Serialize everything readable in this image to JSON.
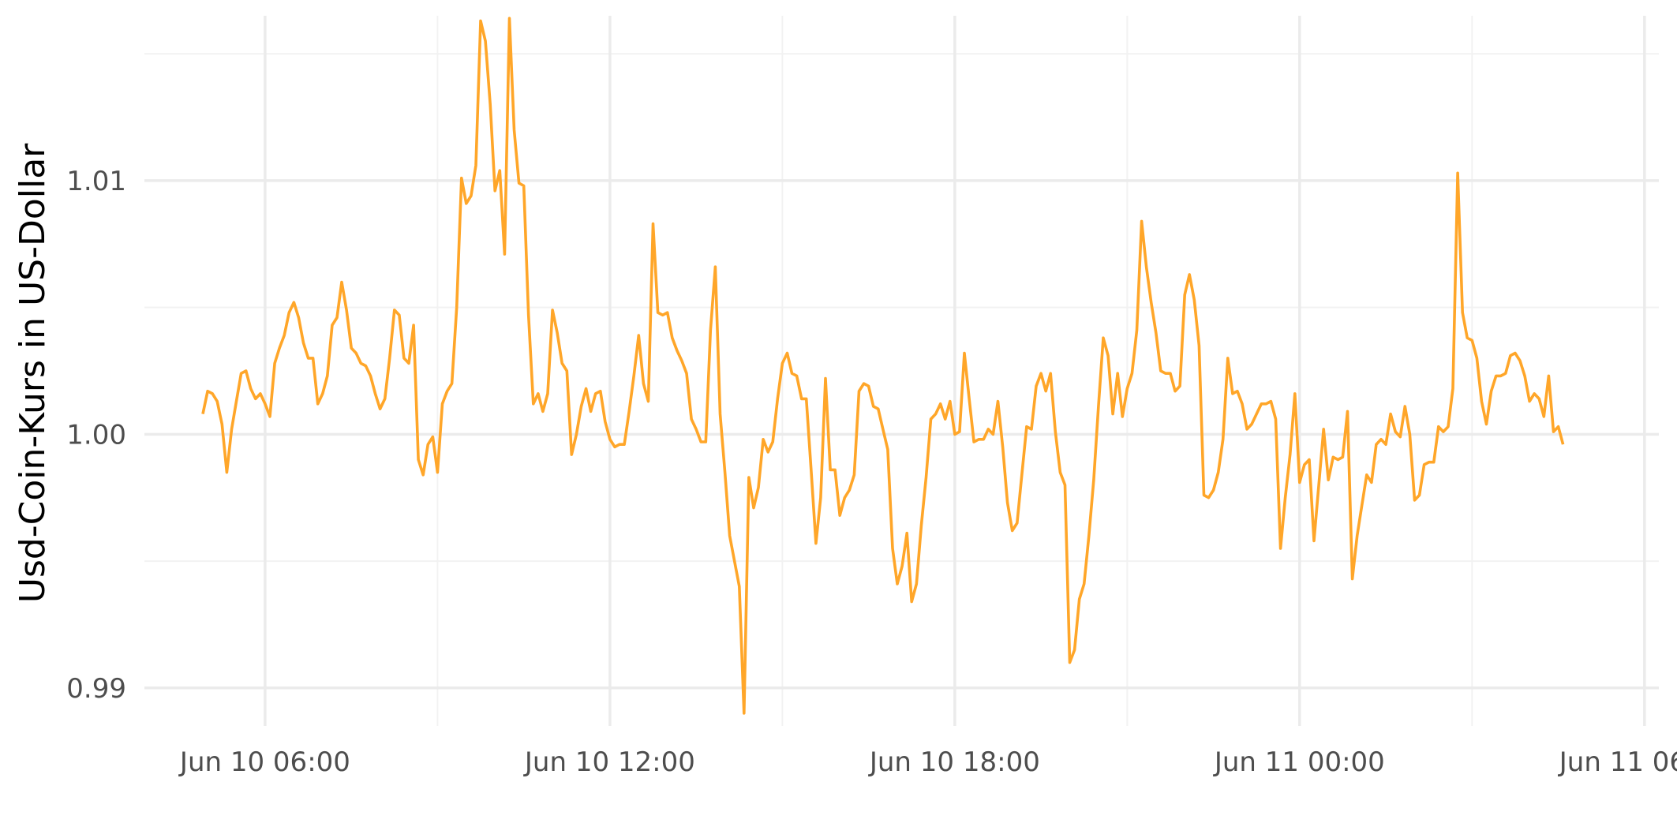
{
  "chart_data": {
    "type": "line",
    "title": "",
    "xlabel": "",
    "ylabel": "Usd-Coin-Kurs in US-Dollar",
    "ylim": [
      0.9885,
      1.0165
    ],
    "xlim": [
      "2021-06-10T03:54",
      "2021-06-11T06:15"
    ],
    "grid": true,
    "legend": "none",
    "line_color": "#FFA629",
    "x_ticks": [
      "2021-06-10T06:00",
      "2021-06-10T12:00",
      "2021-06-10T18:00",
      "2021-06-11T00:00",
      "2021-06-11T06:00"
    ],
    "x_tick_labels": [
      "Jun 10 06:00",
      "Jun 10 12:00",
      "Jun 10 18:00",
      "Jun 11 00:00",
      "Jun 11 06:00"
    ],
    "y_ticks": [
      0.99,
      1.0,
      1.01
    ],
    "y_tick_labels": [
      "0.99",
      "1.00",
      "1.01"
    ],
    "series": [
      {
        "x_start": "2021-06-10T04:55",
        "x_step_minutes": 5,
        "y": [
          1.0008,
          1.0017,
          1.0016,
          1.0013,
          1.0004,
          0.9985,
          1.0002,
          1.0013,
          1.0024,
          1.0025,
          1.0018,
          1.0014,
          1.0016,
          1.0012,
          1.0007,
          1.0028,
          1.0034,
          1.0039,
          1.0048,
          1.0052,
          1.0046,
          1.0036,
          1.003,
          1.003,
          1.0012,
          1.0016,
          1.0023,
          1.0043,
          1.0046,
          1.006,
          1.0049,
          1.0034,
          1.0032,
          1.0028,
          1.0027,
          1.0023,
          1.0016,
          1.001,
          1.0014,
          1.003,
          1.0049,
          1.0047,
          1.003,
          1.0028,
          1.0043,
          0.999,
          0.9984,
          0.9996,
          0.9999,
          0.9985,
          1.0012,
          1.0017,
          1.002,
          1.005,
          1.0101,
          1.0091,
          1.0094,
          1.0106,
          1.0163,
          1.0155,
          1.013,
          1.0096,
          1.0104,
          1.0071,
          1.0164,
          1.012,
          1.0099,
          1.0098,
          1.0047,
          1.0012,
          1.0016,
          1.0009,
          1.0016,
          1.0049,
          1.004,
          1.0028,
          1.0025,
          0.9992,
          1.0,
          1.0011,
          1.0018,
          1.0009,
          1.0016,
          1.0017,
          1.0005,
          0.9998,
          0.9995,
          0.9996,
          0.9996,
          1.0009,
          1.0023,
          1.0039,
          1.002,
          1.0013,
          1.0083,
          1.0048,
          1.0047,
          1.0048,
          1.0038,
          1.0033,
          1.0029,
          1.0024,
          1.0006,
          1.0002,
          0.9997,
          0.9997,
          1.0041,
          1.0066,
          1.0008,
          0.9985,
          0.996,
          0.995,
          0.994,
          0.989,
          0.9983,
          0.9971,
          0.9979,
          0.9998,
          0.9993,
          0.9997,
          1.0014,
          1.0028,
          1.0032,
          1.0024,
          1.0023,
          1.0014,
          1.0014,
          0.9986,
          0.9957,
          0.9975,
          1.0022,
          0.9986,
          0.9986,
          0.9968,
          0.9975,
          0.9978,
          0.9984,
          1.0017,
          1.002,
          1.0019,
          1.0011,
          1.001,
          1.0002,
          0.9994,
          0.9955,
          0.9941,
          0.9948,
          0.9961,
          0.9934,
          0.9941,
          0.9964,
          0.9983,
          1.0006,
          1.0008,
          1.0012,
          1.0006,
          1.0013,
          1.0,
          1.0001,
          1.0032,
          1.0014,
          0.9997,
          0.9998,
          0.9998,
          1.0002,
          1.0,
          1.0013,
          0.9995,
          0.9973,
          0.9962,
          0.9965,
          0.9984,
          1.0003,
          1.0002,
          1.0019,
          1.0024,
          1.0017,
          1.0024,
          1.0001,
          0.9985,
          0.998,
          0.991,
          0.9915,
          0.9935,
          0.9941,
          0.996,
          0.9982,
          1.0011,
          1.0038,
          1.0031,
          1.0008,
          1.0024,
          1.0007,
          1.0018,
          1.0024,
          1.0041,
          1.0084,
          1.0066,
          1.0052,
          1.004,
          1.0025,
          1.0024,
          1.0024,
          1.0017,
          1.0019,
          1.0055,
          1.0063,
          1.0053,
          1.0035,
          0.9976,
          0.9975,
          0.9978,
          0.9985,
          0.9998,
          1.003,
          1.0016,
          1.0017,
          1.0012,
          1.0002,
          1.0004,
          1.0008,
          1.0012,
          1.0012,
          1.0013,
          1.0006,
          0.9955,
          0.9975,
          0.9992,
          1.0016,
          0.9981,
          0.9988,
          0.999,
          0.9958,
          0.998,
          1.0002,
          0.9982,
          0.9991,
          0.999,
          0.9991,
          1.0009,
          0.9943,
          0.996,
          0.9972,
          0.9984,
          0.9981,
          0.9996,
          0.9998,
          0.9996,
          1.0008,
          1.0001,
          0.9999,
          1.0011,
          1.0,
          0.9974,
          0.9976,
          0.9988,
          0.9989,
          0.9989,
          1.0003,
          1.0001,
          1.0003,
          1.0018,
          1.0103,
          1.0048,
          1.0038,
          1.0037,
          1.003,
          1.0013,
          1.0004,
          1.0017,
          1.0023,
          1.0023,
          1.0024,
          1.0031,
          1.0032,
          1.0029,
          1.0023,
          1.0013,
          1.0016,
          1.0014,
          1.0007,
          1.0023,
          1.0001,
          1.0003,
          0.9996
        ]
      }
    ]
  }
}
